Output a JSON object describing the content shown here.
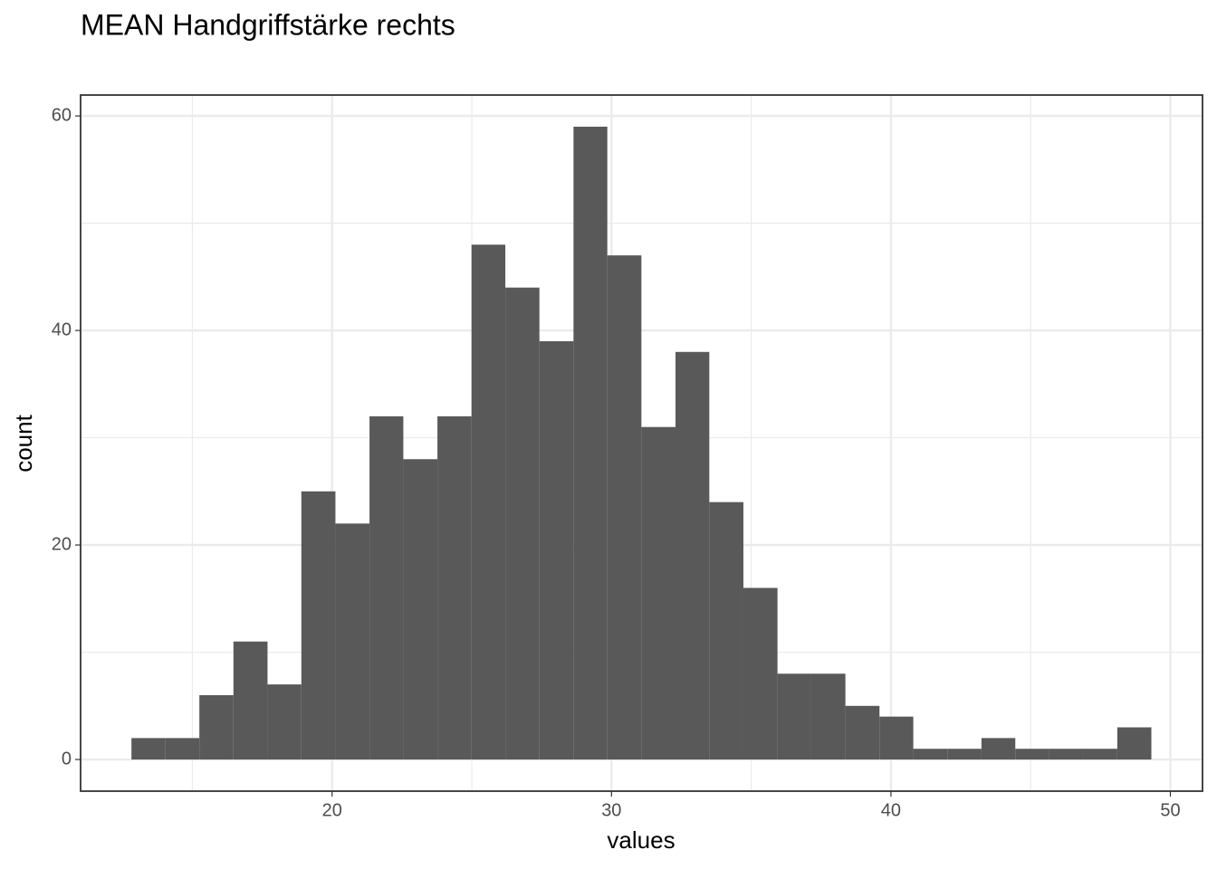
{
  "chart_data": {
    "type": "histogram",
    "title": "MEAN Handgriffstärke rechts",
    "x_label": "values",
    "y_label": "count",
    "bins": [
      12.82,
      14.04,
      15.25,
      16.47,
      17.69,
      18.9,
      20.12,
      21.34,
      22.55,
      23.77,
      24.99,
      26.2,
      27.42,
      28.64,
      29.85,
      31.07,
      32.29,
      33.5,
      34.72,
      35.94,
      37.15,
      38.37,
      39.59,
      40.8,
      42.02,
      43.24,
      44.45,
      45.67,
      46.89,
      48.1,
      49.32
    ],
    "values": [
      2,
      2,
      6,
      11,
      7,
      25,
      22,
      32,
      28,
      32,
      48,
      44,
      39,
      59,
      47,
      31,
      38,
      24,
      16,
      8,
      8,
      5,
      4,
      1,
      1,
      2,
      1,
      1,
      1,
      3
    ],
    "color": "#595959",
    "xlim": [
      11.0,
      51.15
    ],
    "ylim": [
      -2.95,
      61.95
    ],
    "xticks": [
      20,
      30,
      40,
      50
    ],
    "yticks": [
      0,
      20,
      40,
      60
    ],
    "grid": true
  }
}
